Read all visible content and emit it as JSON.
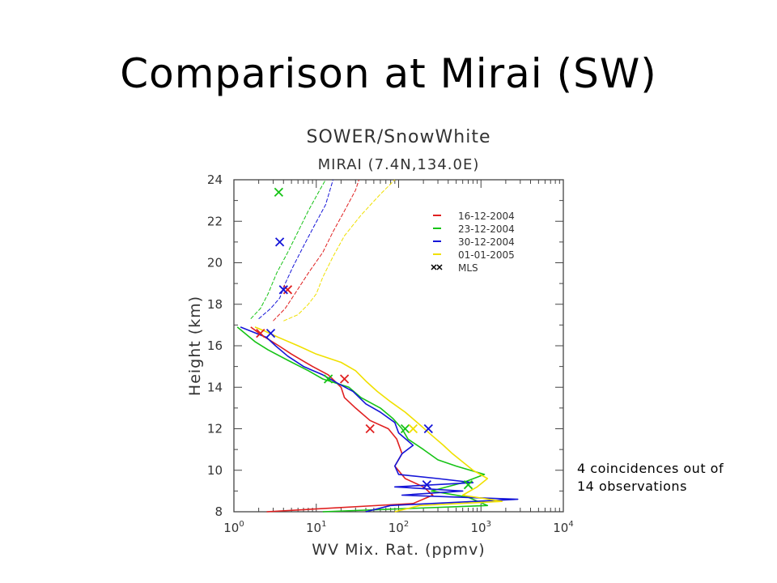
{
  "slide": {
    "title": "Comparison at Mirai (SW)",
    "note_line1": "4 coincidences out of",
    "note_line2": "14 observations"
  },
  "chart_data": {
    "type": "line",
    "title": "SOWER/SnowWhite",
    "subtitle": "MIRAI (7.4N,134.0E)",
    "xlabel": "WV Mix. Rat. (ppmv)",
    "ylabel": "Height (km)",
    "xscale": "log",
    "xlim": [
      1,
      10000
    ],
    "ylim": [
      8,
      24
    ],
    "x_ticks": [
      1,
      10,
      100,
      1000,
      10000
    ],
    "x_tick_exponents": [
      "0",
      "1",
      "2",
      "3",
      "4"
    ],
    "y_ticks": [
      8,
      10,
      12,
      14,
      16,
      18,
      20,
      22,
      24
    ],
    "y_tick_labels": [
      "8",
      "10",
      "12",
      "14",
      "16",
      "18",
      "20",
      "22",
      "24"
    ],
    "legend_position": "top-right",
    "series": [
      {
        "name": "16-12-2004",
        "color": "#e02020",
        "points": [
          [
            2.5,
            8.0
          ],
          [
            150,
            8.4
          ],
          [
            260,
            8.8
          ],
          [
            200,
            9.2
          ],
          [
            120,
            9.6
          ],
          [
            90,
            10.2
          ],
          [
            110,
            10.8
          ],
          [
            95,
            11.5
          ],
          [
            75,
            12.0
          ],
          [
            45,
            12.4
          ],
          [
            30,
            13.0
          ],
          [
            22,
            13.5
          ],
          [
            20,
            14.0
          ],
          [
            14,
            14.6
          ],
          [
            9,
            15.0
          ],
          [
            5,
            15.6
          ],
          [
            3.5,
            16.0
          ],
          [
            2.2,
            16.5
          ],
          [
            1.6,
            16.9
          ]
        ],
        "upper": [
          [
            3.0,
            17.2
          ],
          [
            4.2,
            17.8
          ],
          [
            5.5,
            18.5
          ],
          [
            8,
            19.5
          ],
          [
            12,
            20.5
          ],
          [
            16,
            21.5
          ],
          [
            22,
            22.5
          ],
          [
            30,
            23.5
          ],
          [
            33,
            24.0
          ]
        ]
      },
      {
        "name": "23-12-2004",
        "color": "#16c316",
        "points": [
          [
            12,
            8.0
          ],
          [
            1200,
            8.3
          ],
          [
            700,
            8.7
          ],
          [
            250,
            9.0
          ],
          [
            600,
            9.4
          ],
          [
            1100,
            9.8
          ],
          [
            500,
            10.2
          ],
          [
            300,
            10.5
          ],
          [
            200,
            11.0
          ],
          [
            130,
            11.5
          ],
          [
            110,
            12.0
          ],
          [
            85,
            12.5
          ],
          [
            60,
            13.0
          ],
          [
            35,
            13.5
          ],
          [
            25,
            14.0
          ],
          [
            12,
            14.4
          ],
          [
            8,
            14.8
          ],
          [
            4.5,
            15.3
          ],
          [
            2.6,
            15.8
          ],
          [
            1.8,
            16.2
          ],
          [
            1.1,
            16.9
          ]
        ],
        "upper": [
          [
            1.6,
            17.3
          ],
          [
            2.1,
            17.8
          ],
          [
            2.6,
            18.5
          ],
          [
            3.3,
            19.5
          ],
          [
            4.5,
            20.5
          ],
          [
            6,
            21.5
          ],
          [
            8,
            22.5
          ],
          [
            11,
            23.5
          ],
          [
            13,
            24.0
          ]
        ]
      },
      {
        "name": "30-12-2004",
        "color": "#1515d8",
        "points": [
          [
            40,
            8.0
          ],
          [
            80,
            8.3
          ],
          [
            2800,
            8.6
          ],
          [
            110,
            8.8
          ],
          [
            600,
            9.0
          ],
          [
            90,
            9.2
          ],
          [
            800,
            9.4
          ],
          [
            300,
            9.6
          ],
          [
            100,
            9.8
          ],
          [
            90,
            10.2
          ],
          [
            110,
            10.8
          ],
          [
            150,
            11.2
          ],
          [
            100,
            11.8
          ],
          [
            90,
            12.3
          ],
          [
            60,
            12.8
          ],
          [
            40,
            13.2
          ],
          [
            28,
            13.8
          ],
          [
            18,
            14.2
          ],
          [
            12,
            14.6
          ],
          [
            7,
            15.0
          ],
          [
            4.5,
            15.5
          ],
          [
            3.2,
            16.0
          ],
          [
            2.5,
            16.4
          ],
          [
            1.2,
            16.9
          ]
        ],
        "upper": [
          [
            2.0,
            17.3
          ],
          [
            2.8,
            17.8
          ],
          [
            3.6,
            18.3
          ],
          [
            4.2,
            19.0
          ],
          [
            5.2,
            19.8
          ],
          [
            7,
            20.8
          ],
          [
            9.5,
            21.8
          ],
          [
            13,
            22.8
          ],
          [
            16,
            24.0
          ]
        ]
      },
      {
        "name": "01-01-2005",
        "color": "#f0e000",
        "points": [
          [
            90,
            8.0
          ],
          [
            180,
            8.3
          ],
          [
            1800,
            8.5
          ],
          [
            600,
            8.8
          ],
          [
            900,
            9.2
          ],
          [
            1200,
            9.6
          ],
          [
            800,
            10.0
          ],
          [
            600,
            10.4
          ],
          [
            450,
            10.8
          ],
          [
            350,
            11.2
          ],
          [
            250,
            11.7
          ],
          [
            180,
            12.2
          ],
          [
            120,
            12.8
          ],
          [
            80,
            13.3
          ],
          [
            55,
            13.8
          ],
          [
            40,
            14.3
          ],
          [
            30,
            14.8
          ],
          [
            20,
            15.2
          ],
          [
            10,
            15.6
          ],
          [
            6,
            16.0
          ],
          [
            3.5,
            16.4
          ],
          [
            2.4,
            16.7
          ],
          [
            1.8,
            16.9
          ]
        ],
        "upper": [
          [
            4,
            17.2
          ],
          [
            6,
            17.5
          ],
          [
            8,
            18.0
          ],
          [
            10,
            18.5
          ],
          [
            12,
            19.3
          ],
          [
            16,
            20.3
          ],
          [
            22,
            21.3
          ],
          [
            35,
            22.3
          ],
          [
            60,
            23.3
          ],
          [
            90,
            24.0
          ]
        ]
      }
    ],
    "mls": {
      "name": "MLS",
      "points": [
        {
          "x": 3.5,
          "y": 23.4,
          "color": "#16c316"
        },
        {
          "x": 3.6,
          "y": 21.0,
          "color": "#1515d8"
        },
        {
          "x": 4.5,
          "y": 18.7,
          "color": "#e02020"
        },
        {
          "x": 4.0,
          "y": 18.7,
          "color": "#1515d8"
        },
        {
          "x": 2.8,
          "y": 16.6,
          "color": "#1515d8"
        },
        {
          "x": 2.1,
          "y": 16.6,
          "color": "#e02020"
        },
        {
          "x": 14,
          "y": 14.4,
          "color": "#16c316"
        },
        {
          "x": 22,
          "y": 14.4,
          "color": "#e02020"
        },
        {
          "x": 45,
          "y": 12.0,
          "color": "#e02020"
        },
        {
          "x": 120,
          "y": 12.0,
          "color": "#16c316"
        },
        {
          "x": 150,
          "y": 12.0,
          "color": "#f0e000"
        },
        {
          "x": 230,
          "y": 12.0,
          "color": "#1515d8"
        },
        {
          "x": 220,
          "y": 9.3,
          "color": "#1515d8"
        },
        {
          "x": 700,
          "y": 9.3,
          "color": "#16c316"
        }
      ]
    }
  }
}
